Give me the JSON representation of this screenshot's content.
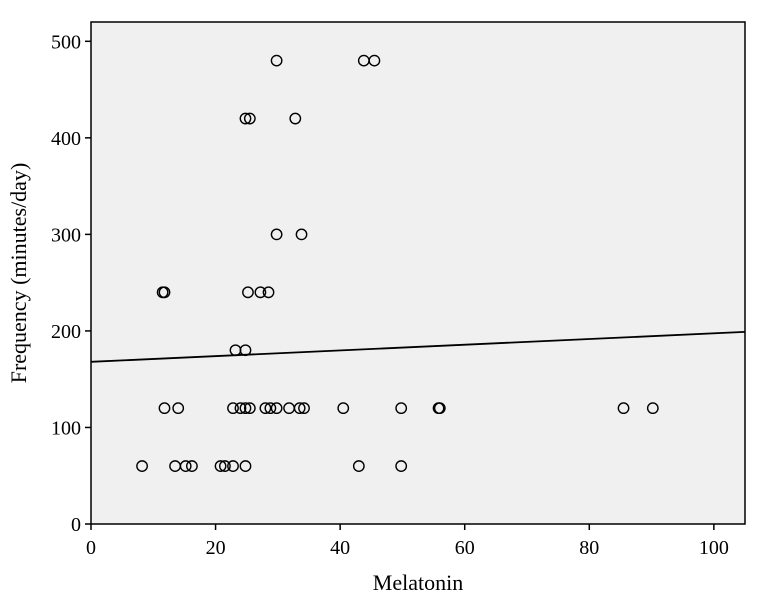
{
  "chart_data": {
    "type": "scatter",
    "xlabel": "Melatonin",
    "ylabel": "Frequency (minutes/day)",
    "xlim": [
      0,
      105
    ],
    "ylim": [
      0,
      520
    ],
    "xticks": [
      0,
      20,
      40,
      60,
      80,
      100
    ],
    "yticks": [
      0,
      100,
      200,
      300,
      400,
      500
    ],
    "grid": false,
    "background": "#f0f0f0",
    "marker_color": "#000000",
    "points": [
      {
        "x": 8.2,
        "y": 60
      },
      {
        "x": 13.5,
        "y": 60
      },
      {
        "x": 15.2,
        "y": 60
      },
      {
        "x": 16.2,
        "y": 60
      },
      {
        "x": 20.8,
        "y": 60
      },
      {
        "x": 21.5,
        "y": 60
      },
      {
        "x": 22.8,
        "y": 60
      },
      {
        "x": 24.8,
        "y": 60
      },
      {
        "x": 43.0,
        "y": 60
      },
      {
        "x": 49.8,
        "y": 60
      },
      {
        "x": 11.8,
        "y": 120
      },
      {
        "x": 14.0,
        "y": 120
      },
      {
        "x": 22.8,
        "y": 120
      },
      {
        "x": 24.0,
        "y": 120
      },
      {
        "x": 24.8,
        "y": 120
      },
      {
        "x": 25.5,
        "y": 120
      },
      {
        "x": 28.0,
        "y": 120
      },
      {
        "x": 28.8,
        "y": 120
      },
      {
        "x": 29.8,
        "y": 120
      },
      {
        "x": 31.8,
        "y": 120
      },
      {
        "x": 33.5,
        "y": 120
      },
      {
        "x": 34.2,
        "y": 120
      },
      {
        "x": 40.5,
        "y": 120
      },
      {
        "x": 49.8,
        "y": 120
      },
      {
        "x": 55.8,
        "y": 120
      },
      {
        "x": 56.0,
        "y": 120
      },
      {
        "x": 85.5,
        "y": 120
      },
      {
        "x": 90.2,
        "y": 120
      },
      {
        "x": 23.2,
        "y": 180
      },
      {
        "x": 24.8,
        "y": 180
      },
      {
        "x": 11.5,
        "y": 240
      },
      {
        "x": 11.8,
        "y": 240
      },
      {
        "x": 25.2,
        "y": 240
      },
      {
        "x": 27.2,
        "y": 240
      },
      {
        "x": 28.5,
        "y": 240
      },
      {
        "x": 29.8,
        "y": 300
      },
      {
        "x": 33.8,
        "y": 300
      },
      {
        "x": 24.8,
        "y": 420
      },
      {
        "x": 25.5,
        "y": 420
      },
      {
        "x": 32.8,
        "y": 420
      },
      {
        "x": 29.8,
        "y": 480
      },
      {
        "x": 43.8,
        "y": 480
      },
      {
        "x": 45.5,
        "y": 480
      }
    ],
    "fit_line": {
      "x": [
        0,
        105
      ],
      "y": [
        168,
        199
      ]
    }
  }
}
